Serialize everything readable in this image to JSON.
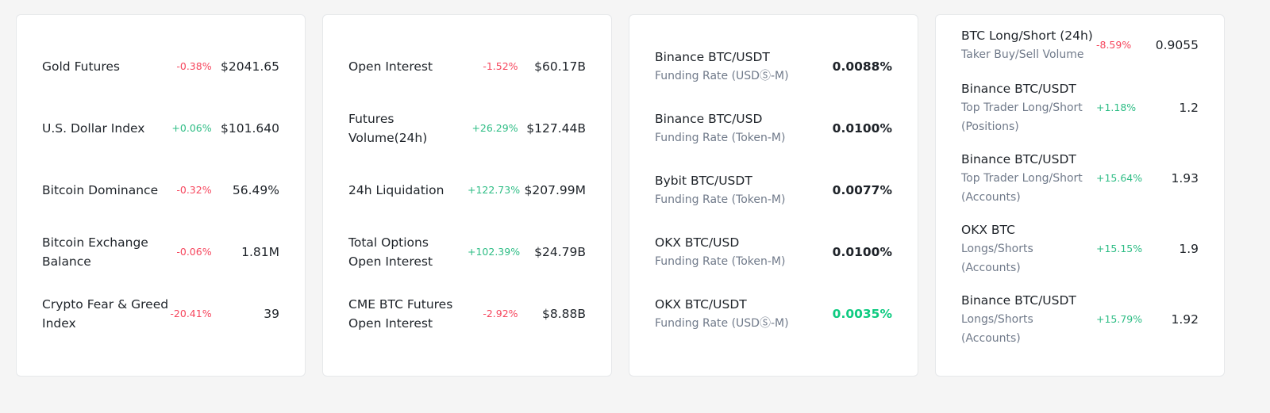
{
  "card1": [
    {
      "name": "Gold Futures",
      "pct": "-0.38%",
      "dir": "down",
      "val": "$2041.65"
    },
    {
      "name": "U.S. Dollar Index",
      "pct": "+0.06%",
      "dir": "up",
      "val": "$101.640"
    },
    {
      "name": "Bitcoin Dominance",
      "pct": "-0.32%",
      "dir": "down",
      "val": "56.49%"
    },
    {
      "name_line1": "Bitcoin Exchange",
      "name_line2": "Balance",
      "pct": "-0.06%",
      "dir": "down",
      "val": "1.81M"
    },
    {
      "name_line1": "Crypto Fear & Greed",
      "name_line2": "Index",
      "pct": "-20.41%",
      "dir": "down",
      "val": "39"
    }
  ],
  "card2": [
    {
      "name": "Open Interest",
      "pct": "-1.52%",
      "dir": "down",
      "val": "$60.17B"
    },
    {
      "name_line1": "Futures",
      "name_line2": "Volume(24h)",
      "pct": "+26.29%",
      "dir": "up",
      "val": "$127.44B"
    },
    {
      "name": "24h Liquidation",
      "pct": "+122.73%",
      "dir": "up",
      "val": "$207.99M"
    },
    {
      "name_line1": "Total Options",
      "name_line2": "Open Interest",
      "pct": "+102.39%",
      "dir": "up",
      "val": "$24.79B"
    },
    {
      "name_line1": "CME BTC Futures",
      "name_line2": "Open Interest",
      "pct": "-2.92%",
      "dir": "down",
      "val": "$8.88B"
    }
  ],
  "card3": [
    {
      "name": "Binance BTC/USDT",
      "sub": "Funding Rate (USDⓈ-M)",
      "val": "0.0088%"
    },
    {
      "name": "Binance BTC/USD",
      "sub": "Funding Rate (Token-M)",
      "val": "0.0100%"
    },
    {
      "name": "Bybit BTC/USDT",
      "sub": "Funding Rate (Token-M)",
      "val": "0.0077%"
    },
    {
      "name": "OKX BTC/USD",
      "sub": "Funding Rate (Token-M)",
      "val": "0.0100%"
    },
    {
      "name": "OKX BTC/USDT",
      "sub": "Funding Rate (USDⓈ-M)",
      "val": "0.0035%",
      "highlight": "#0ecb81"
    }
  ],
  "card4": [
    {
      "name": "BTC Long/Short (24h)",
      "sub1": "Taker Buy/Sell Volume",
      "pct": "-8.59%",
      "dir": "down",
      "val": "0.9055"
    },
    {
      "name": "Binance BTC/USDT",
      "sub1": "Top Trader Long/Short",
      "sub2": "(Positions)",
      "pct": "+1.18%",
      "dir": "up",
      "val": "1.2"
    },
    {
      "name": "Binance BTC/USDT",
      "sub1": "Top Trader Long/Short",
      "sub2": "(Accounts)",
      "pct": "+15.64%",
      "dir": "up",
      "val": "1.93"
    },
    {
      "name": "OKX BTC",
      "sub1": "Longs/Shorts",
      "sub2": "(Accounts)",
      "pct": "+15.15%",
      "dir": "up",
      "val": "1.9"
    },
    {
      "name": "Binance BTC/USDT",
      "sub1": "Longs/Shorts",
      "sub2": "(Accounts)",
      "pct": "+15.79%",
      "dir": "up",
      "val": "1.92"
    }
  ],
  "colors": {
    "up": "#2ebd85",
    "down": "#f6465d",
    "text": "#1e2329",
    "muted": "#707a8a"
  }
}
